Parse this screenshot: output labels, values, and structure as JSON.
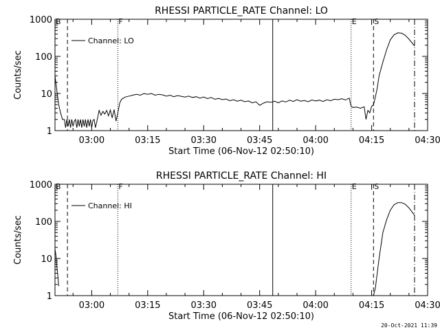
{
  "footer": {
    "timestamp": "20-Oct-2021 11:39"
  },
  "chart_data": [
    {
      "type": "line",
      "title": "RHESSI PARTICLE_RATE Channel: LO",
      "xlabel": "Start Time (06-Nov-12 02:50:10)",
      "ylabel": "Counts/sec",
      "xscale": "time",
      "yscale": "log",
      "xlim": [
        "02:50:10",
        "04:30:00"
      ],
      "ylim": [
        1,
        1000
      ],
      "xtick_labels": [
        "03:00",
        "03:15",
        "03:30",
        "03:45",
        "04:00",
        "04:15",
        "04:30"
      ],
      "ytick_labels": [
        "1",
        "10",
        "100",
        "1000"
      ],
      "legend": {
        "label": "Channel: LO",
        "placement": "top-left"
      },
      "markers": [
        {
          "label": "B",
          "x": "02:50:10",
          "style": "dashed"
        },
        {
          "label": "",
          "x": "02:53:30",
          "style": "dashed"
        },
        {
          "label": "F",
          "x": "03:07:00",
          "style": "dotted"
        },
        {
          "label": "",
          "x": "03:48:30",
          "style": "solid"
        },
        {
          "label": "E",
          "x": "04:09:30",
          "style": "dotted"
        },
        {
          "label": "S",
          "x": "04:15:30",
          "style": "dashed"
        },
        {
          "label": "",
          "x": "04:26:30",
          "style": "dash-dot"
        }
      ],
      "series": [
        {
          "name": "Channel: LO",
          "points": [
            [
              "02:50:10",
              30
            ],
            [
              "02:50:40",
              12
            ],
            [
              "02:51:10",
              5
            ],
            [
              "02:51:40",
              3
            ],
            [
              "02:52:10",
              2
            ],
            [
              "02:52:40",
              2
            ],
            [
              "02:53:00",
              1.2
            ],
            [
              "02:53:20",
              2
            ],
            [
              "02:53:40",
              1.3
            ],
            [
              "02:54:00",
              2
            ],
            [
              "02:54:20",
              1.2
            ],
            [
              "02:54:40",
              2
            ],
            [
              "02:55:00",
              1.3
            ],
            [
              "02:55:20",
              1.8
            ],
            [
              "02:55:40",
              2
            ],
            [
              "02:56:00",
              1.2
            ],
            [
              "02:56:20",
              2
            ],
            [
              "02:56:40",
              1.3
            ],
            [
              "02:57:00",
              2
            ],
            [
              "02:57:20",
              1.2
            ],
            [
              "02:57:40",
              2
            ],
            [
              "02:58:00",
              1.3
            ],
            [
              "02:58:20",
              2
            ],
            [
              "02:58:40",
              1.2
            ],
            [
              "02:59:00",
              2
            ],
            [
              "02:59:20",
              1.3
            ],
            [
              "02:59:40",
              2
            ],
            [
              "03:00:00",
              1.2
            ],
            [
              "03:00:20",
              1.9
            ],
            [
              "03:00:40",
              2
            ],
            [
              "03:01:00",
              1.2
            ],
            [
              "03:01:30",
              2
            ],
            [
              "03:02:00",
              3.5
            ],
            [
              "03:02:30",
              2.6
            ],
            [
              "03:03:00",
              3.3
            ],
            [
              "03:03:30",
              2.8
            ],
            [
              "03:04:00",
              3.5
            ],
            [
              "03:04:30",
              2.5
            ],
            [
              "03:05:00",
              3.6
            ],
            [
              "03:05:30",
              2.2
            ],
            [
              "03:06:00",
              3.7
            ],
            [
              "03:06:30",
              1.8
            ],
            [
              "03:07:00",
              3
            ],
            [
              "03:07:30",
              5.5
            ],
            [
              "03:08:00",
              7
            ],
            [
              "03:09:00",
              8
            ],
            [
              "03:10:00",
              8.5
            ],
            [
              "03:11:00",
              9
            ],
            [
              "03:12:00",
              9.5
            ],
            [
              "03:13:00",
              9
            ],
            [
              "03:14:00",
              10
            ],
            [
              "03:15:00",
              9.5
            ],
            [
              "03:16:00",
              10
            ],
            [
              "03:17:00",
              9
            ],
            [
              "03:18:00",
              9.5
            ],
            [
              "03:19:00",
              9.2
            ],
            [
              "03:20:00",
              8.5
            ],
            [
              "03:21:00",
              9
            ],
            [
              "03:22:00",
              8.2
            ],
            [
              "03:23:00",
              8.8
            ],
            [
              "03:24:00",
              8.4
            ],
            [
              "03:25:00",
              8
            ],
            [
              "03:26:00",
              8.5
            ],
            [
              "03:27:00",
              7.8
            ],
            [
              "03:28:00",
              8.2
            ],
            [
              "03:29:00",
              7.5
            ],
            [
              "03:30:00",
              8
            ],
            [
              "03:31:00",
              7.3
            ],
            [
              "03:32:00",
              7.8
            ],
            [
              "03:33:00",
              7
            ],
            [
              "03:34:00",
              7.4
            ],
            [
              "03:35:00",
              6.8
            ],
            [
              "03:36:00",
              7.1
            ],
            [
              "03:37:00",
              6.4
            ],
            [
              "03:38:00",
              6.8
            ],
            [
              "03:39:00",
              6.2
            ],
            [
              "03:40:00",
              6.6
            ],
            [
              "03:41:00",
              6
            ],
            [
              "03:42:00",
              6.3
            ],
            [
              "03:43:00",
              5.6
            ],
            [
              "03:44:00",
              6
            ],
            [
              "03:45:00",
              4.8
            ],
            [
              "03:46:00",
              5.5
            ],
            [
              "03:47:00",
              6
            ],
            [
              "03:48:00",
              5.8
            ],
            [
              "03:49:00",
              6.2
            ],
            [
              "03:50:00",
              5.6
            ],
            [
              "03:51:00",
              6.3
            ],
            [
              "03:52:00",
              5.9
            ],
            [
              "03:53:00",
              6.6
            ],
            [
              "03:54:00",
              6.1
            ],
            [
              "03:55:00",
              6.8
            ],
            [
              "03:56:00",
              6.2
            ],
            [
              "03:57:00",
              6.5
            ],
            [
              "03:58:00",
              6
            ],
            [
              "03:59:00",
              6.7
            ],
            [
              "04:00:00",
              6.3
            ],
            [
              "04:01:00",
              6.6
            ],
            [
              "04:02:00",
              6.1
            ],
            [
              "04:03:00",
              6.8
            ],
            [
              "04:04:00",
              6.4
            ],
            [
              "04:05:00",
              7
            ],
            [
              "04:06:00",
              6.8
            ],
            [
              "04:07:00",
              7.2
            ],
            [
              "04:08:00",
              6.7
            ],
            [
              "04:09:00",
              7.5
            ],
            [
              "04:09:30",
              4.5
            ],
            [
              "04:10:00",
              4.2
            ],
            [
              "04:11:00",
              4.3
            ],
            [
              "04:12:00",
              4
            ],
            [
              "04:13:00",
              4.4
            ],
            [
              "04:13:30",
              2
            ],
            [
              "04:14:00",
              3.5
            ],
            [
              "04:14:30",
              3
            ],
            [
              "04:15:00",
              4.5
            ],
            [
              "04:15:30",
              5
            ],
            [
              "04:16:00",
              8
            ],
            [
              "04:16:30",
              14
            ],
            [
              "04:17:00",
              30
            ],
            [
              "04:18:00",
              70
            ],
            [
              "04:19:00",
              150
            ],
            [
              "04:20:00",
              280
            ],
            [
              "04:21:00",
              380
            ],
            [
              "04:22:00",
              430
            ],
            [
              "04:23:00",
              420
            ],
            [
              "04:24:00",
              370
            ],
            [
              "04:25:00",
              290
            ],
            [
              "04:26:00",
              220
            ],
            [
              "04:26:30",
              190
            ]
          ]
        }
      ]
    },
    {
      "type": "line",
      "title": "RHESSI PARTICLE_RATE Channel: HI",
      "xlabel": "Start Time (06-Nov-12 02:50:10)",
      "ylabel": "Counts/sec",
      "xscale": "time",
      "yscale": "log",
      "xlim": [
        "02:50:10",
        "04:30:00"
      ],
      "ylim": [
        1,
        1000
      ],
      "xtick_labels": [
        "03:00",
        "03:15",
        "03:30",
        "03:45",
        "04:00",
        "04:15",
        "04:30"
      ],
      "ytick_labels": [
        "1",
        "10",
        "100",
        "1000"
      ],
      "legend": {
        "label": "Channel: HI",
        "placement": "top-left"
      },
      "markers": [
        {
          "label": "B",
          "x": "02:50:10",
          "style": "dashed"
        },
        {
          "label": "",
          "x": "02:53:30",
          "style": "dashed"
        },
        {
          "label": "F",
          "x": "03:07:00",
          "style": "dotted"
        },
        {
          "label": "",
          "x": "03:48:30",
          "style": "solid"
        },
        {
          "label": "E",
          "x": "04:09:30",
          "style": "dotted"
        },
        {
          "label": "S",
          "x": "04:15:30",
          "style": "dashed"
        },
        {
          "label": "",
          "x": "04:26:30",
          "style": "dash-dot"
        }
      ],
      "series": [
        {
          "name": "Channel: HI",
          "points": [
            [
              "02:50:10",
              18
            ],
            [
              "02:50:25",
              12
            ],
            [
              "02:50:40",
              6
            ],
            [
              "02:50:55",
              3.5
            ],
            [
              "02:51:10",
              1.8
            ],
            [
              "04:15:30",
              1
            ],
            [
              "04:16:00",
              1.6
            ],
            [
              "04:16:30",
              4
            ],
            [
              "04:17:00",
              10
            ],
            [
              "04:17:30",
              22
            ],
            [
              "04:18:00",
              50
            ],
            [
              "04:19:00",
              110
            ],
            [
              "04:20:00",
              200
            ],
            [
              "04:21:00",
              280
            ],
            [
              "04:22:00",
              320
            ],
            [
              "04:23:00",
              320
            ],
            [
              "04:24:00",
              290
            ],
            [
              "04:25:00",
              230
            ],
            [
              "04:26:00",
              170
            ],
            [
              "04:26:30",
              145
            ]
          ]
        }
      ]
    }
  ]
}
